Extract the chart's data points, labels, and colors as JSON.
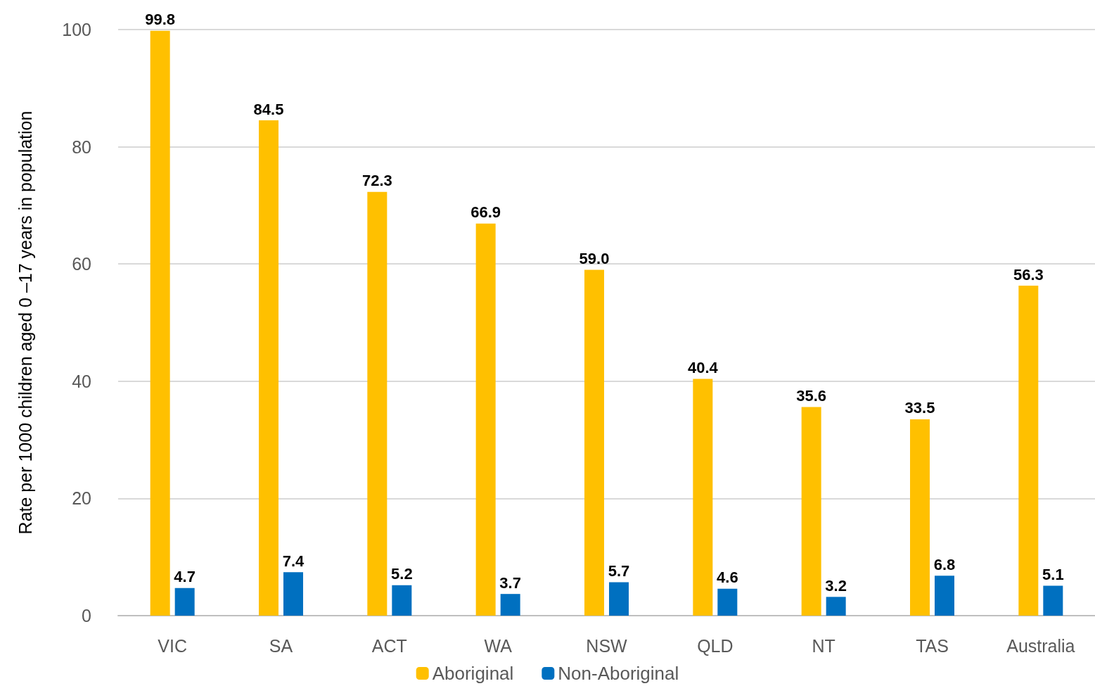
{
  "chart_data": {
    "type": "bar",
    "ylabel": "Rate per 1000 children aged 0 –17 years in population",
    "categories": [
      "VIC",
      "SA",
      "ACT",
      "WA",
      "NSW",
      "QLD",
      "NT",
      "TAS",
      "Australia"
    ],
    "series": [
      {
        "name": "Aboriginal",
        "color": "#ffc000",
        "values": [
          99.8,
          84.5,
          72.3,
          66.9,
          59,
          40.4,
          35.6,
          33.5,
          56.3
        ],
        "value_labels": [
          "99.8",
          "84.5",
          "72.3",
          "66.9",
          "59.0",
          "40.4",
          "35.6",
          "33.5",
          "56.3"
        ]
      },
      {
        "name": "Non-Aboriginal",
        "color": "#0070c0",
        "values": [
          4.7,
          7.4,
          5.2,
          3.7,
          5.7,
          4.6,
          3.2,
          6.8,
          5.1
        ],
        "value_labels": [
          "4.7",
          "7.4",
          "5.2",
          "3.7",
          "5.7",
          "4.6",
          "3.2",
          "6.8",
          "5.1"
        ]
      }
    ],
    "ylim": [
      0,
      100
    ],
    "yticks": [
      0,
      20,
      40,
      60,
      80,
      100
    ],
    "grid": "y",
    "legend": "bottom"
  }
}
